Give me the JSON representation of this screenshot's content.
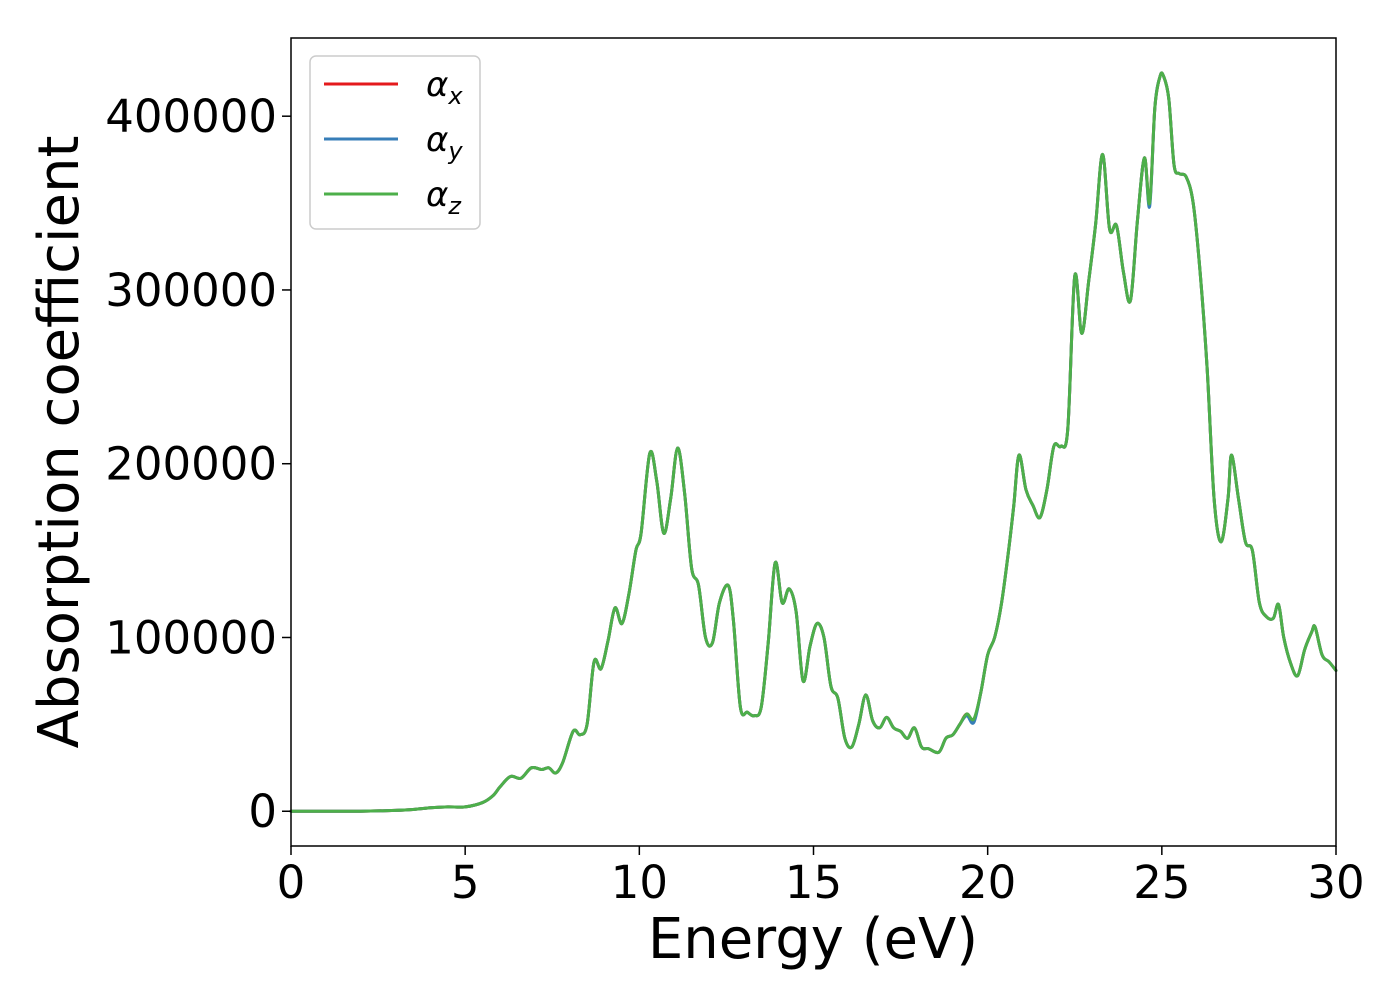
{
  "chart_data": {
    "type": "line",
    "xlabel": "Energy (eV)",
    "ylabel": "Absorption coefficient",
    "xlim": [
      0,
      30
    ],
    "ylim": [
      -20000,
      445000
    ],
    "xticks": [
      0,
      5,
      10,
      15,
      20,
      25,
      30
    ],
    "yticks": [
      0,
      100000,
      200000,
      300000,
      400000
    ],
    "legend_position": "top-left",
    "grid": false,
    "x": [
      0,
      1,
      2,
      3,
      3.5,
      4,
      4.5,
      5,
      5.5,
      5.8,
      6,
      6.3,
      6.6,
      6.9,
      7.2,
      7.4,
      7.6,
      7.8,
      8.1,
      8.3,
      8.5,
      8.7,
      8.9,
      9.1,
      9.3,
      9.5,
      9.7,
      9.9,
      10.05,
      10.3,
      10.5,
      10.7,
      10.9,
      11.1,
      11.3,
      11.5,
      11.7,
      11.9,
      12.1,
      12.3,
      12.55,
      12.7,
      12.9,
      13.1,
      13.3,
      13.5,
      13.7,
      13.9,
      14.1,
      14.3,
      14.5,
      14.7,
      14.9,
      15.1,
      15.3,
      15.5,
      15.7,
      15.9,
      16.1,
      16.3,
      16.5,
      16.7,
      16.9,
      17.1,
      17.3,
      17.5,
      17.7,
      17.9,
      18.1,
      18.3,
      18.6,
      18.8,
      19.0,
      19.2,
      19.4,
      19.6,
      19.8,
      20.0,
      20.2,
      20.4,
      20.6,
      20.75,
      20.9,
      21.1,
      21.3,
      21.5,
      21.7,
      21.9,
      22.1,
      22.3,
      22.5,
      22.7,
      22.9,
      23.1,
      23.3,
      23.5,
      23.7,
      23.9,
      24.1,
      24.3,
      24.5,
      24.65,
      24.8,
      24.95,
      25.05,
      25.2,
      25.35,
      25.5,
      25.7,
      25.9,
      26.1,
      26.3,
      26.5,
      26.7,
      26.9,
      27.0,
      27.2,
      27.4,
      27.6,
      27.8,
      28.0,
      28.2,
      28.35,
      28.5,
      28.7,
      28.9,
      29.1,
      29.3,
      29.4,
      29.6,
      29.8,
      30.0
    ],
    "series": [
      {
        "name": "α_x",
        "color": "#e41a1c",
        "values": [
          0,
          0,
          0,
          500,
          1000,
          2000,
          2500,
          2500,
          5000,
          9000,
          14000,
          20000,
          19000,
          25000,
          24000,
          25000,
          22000,
          28000,
          46000,
          44000,
          50000,
          86000,
          82000,
          98000,
          117000,
          108000,
          125000,
          150000,
          160000,
          206000,
          190000,
          160000,
          180000,
          209000,
          183000,
          140000,
          130000,
          100000,
          97000,
          120000,
          130000,
          110000,
          60000,
          57000,
          55000,
          60000,
          97000,
          143000,
          120000,
          128000,
          115000,
          75000,
          95000,
          108000,
          100000,
          72000,
          65000,
          42000,
          37000,
          50000,
          67000,
          52000,
          48000,
          54000,
          48000,
          46000,
          42000,
          48000,
          37000,
          36000,
          34000,
          42000,
          44000,
          50000,
          56000,
          52000,
          68000,
          90000,
          100000,
          120000,
          150000,
          176000,
          205000,
          185000,
          176000,
          169000,
          185000,
          210000,
          210000,
          220000,
          308000,
          275000,
          305000,
          338000,
          378000,
          335000,
          337000,
          310000,
          294000,
          340000,
          376000,
          350000,
          405000,
          423000,
          423000,
          410000,
          372000,
          367000,
          365000,
          350000,
          310000,
          255000,
          180000,
          155000,
          180000,
          205000,
          180000,
          155000,
          150000,
          120000,
          112000,
          111000,
          119000,
          100000,
          85000,
          78000,
          93000,
          103000,
          106000,
          90000,
          86000,
          81000
        ]
      },
      {
        "name": "α_y",
        "color": "#377eb8",
        "values": [
          0,
          0,
          0,
          500,
          1000,
          2000,
          2500,
          2500,
          5000,
          9000,
          14000,
          20000,
          19000,
          25000,
          24000,
          25000,
          22000,
          28000,
          46000,
          44000,
          50000,
          86000,
          82000,
          98000,
          117000,
          108000,
          125000,
          150000,
          160000,
          206000,
          190000,
          160000,
          180000,
          209000,
          183000,
          140000,
          130000,
          100000,
          97000,
          120000,
          130000,
          110000,
          60000,
          57000,
          55000,
          60000,
          97000,
          143000,
          120000,
          128000,
          115000,
          75000,
          95000,
          108000,
          100000,
          72000,
          65000,
          42000,
          37000,
          50000,
          67000,
          52000,
          48000,
          54000,
          48000,
          46000,
          42000,
          48000,
          37000,
          36000,
          34000,
          42000,
          44000,
          50000,
          55000,
          51000,
          68000,
          90000,
          100000,
          120000,
          150000,
          176000,
          205000,
          185000,
          176000,
          169000,
          185000,
          210000,
          210000,
          220000,
          308000,
          275000,
          305000,
          338000,
          378000,
          335000,
          337000,
          310000,
          294000,
          340000,
          376000,
          348000,
          405000,
          423000,
          423000,
          410000,
          372000,
          367000,
          365000,
          350000,
          310000,
          255000,
          180000,
          155000,
          180000,
          205000,
          180000,
          155000,
          150000,
          120000,
          112000,
          111000,
          119000,
          100000,
          85000,
          78000,
          93000,
          103000,
          106000,
          90000,
          86000,
          81000
        ]
      },
      {
        "name": "α_z",
        "color": "#4daf4a",
        "values": [
          0,
          0,
          0,
          500,
          1000,
          2000,
          2500,
          2500,
          5000,
          9000,
          14000,
          20000,
          19000,
          25000,
          24000,
          25000,
          22000,
          28000,
          46000,
          44000,
          50000,
          86000,
          82000,
          98000,
          117000,
          108000,
          125000,
          150000,
          160000,
          206000,
          190000,
          160000,
          180000,
          209000,
          183000,
          140000,
          130000,
          100000,
          97000,
          120000,
          130000,
          110000,
          60000,
          57000,
          55000,
          60000,
          97000,
          143000,
          120000,
          128000,
          115000,
          75000,
          95000,
          108000,
          100000,
          72000,
          65000,
          42000,
          37000,
          50000,
          67000,
          52000,
          48000,
          54000,
          48000,
          46000,
          42000,
          48000,
          37000,
          36000,
          34000,
          42000,
          44000,
          50000,
          56000,
          53000,
          68000,
          90000,
          100000,
          120000,
          150000,
          176000,
          205000,
          185000,
          176000,
          169000,
          185000,
          210000,
          210000,
          220000,
          308000,
          275000,
          305000,
          338000,
          378000,
          335000,
          337000,
          310000,
          294000,
          340000,
          376000,
          350000,
          405000,
          423000,
          423000,
          410000,
          372000,
          367000,
          365000,
          350000,
          310000,
          255000,
          180000,
          155000,
          180000,
          205000,
          180000,
          155000,
          150000,
          120000,
          112000,
          111000,
          119000,
          100000,
          85000,
          78000,
          93000,
          103000,
          106000,
          90000,
          86000,
          81000
        ]
      }
    ]
  }
}
